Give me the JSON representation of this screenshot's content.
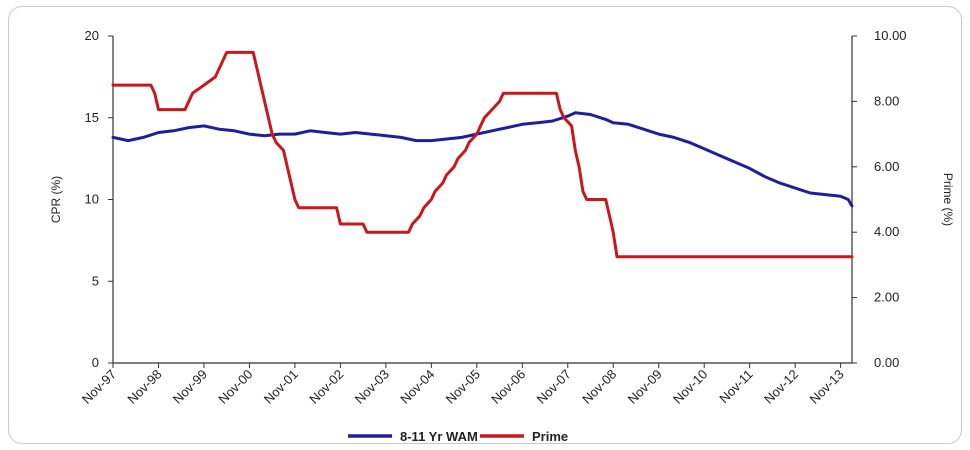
{
  "chart_data": {
    "type": "line",
    "title": "",
    "xlabel": "",
    "ylabel_left": "CPR (%)",
    "ylabel_right": "Prime (%)",
    "x_start": "1997-11",
    "x_end": "2014-02",
    "x_tick_labels": [
      "Nov-97",
      "Nov-98",
      "Nov-99",
      "Nov-00",
      "Nov-01",
      "Nov-02",
      "Nov-03",
      "Nov-04",
      "Nov-05",
      "Nov-06",
      "Nov-07",
      "Nov-08",
      "Nov-09",
      "Nov-10",
      "Nov-11",
      "Nov-12",
      "Nov-13"
    ],
    "y_left": {
      "min": 0,
      "max": 20,
      "ticks": [
        "0",
        "5",
        "10",
        "15",
        "20"
      ]
    },
    "y_right": {
      "min": 0,
      "max": 10,
      "ticks": [
        "0.00",
        "2.00",
        "4.00",
        "6.00",
        "8.00",
        "10.00"
      ]
    },
    "grid": false,
    "legend_position": "bottom",
    "series": [
      {
        "name": "8-11 Yr WAM",
        "axis": "left",
        "color": "#1f1f9c",
        "points": [
          [
            "1997-11",
            13.8
          ],
          [
            "1998-03",
            13.6
          ],
          [
            "1998-07",
            13.8
          ],
          [
            "1998-11",
            14.1
          ],
          [
            "1999-03",
            14.2
          ],
          [
            "1999-07",
            14.4
          ],
          [
            "1999-11",
            14.5
          ],
          [
            "2000-03",
            14.3
          ],
          [
            "2000-07",
            14.2
          ],
          [
            "2000-11",
            14.0
          ],
          [
            "2001-03",
            13.9
          ],
          [
            "2001-07",
            14.0
          ],
          [
            "2001-11",
            14.0
          ],
          [
            "2002-03",
            14.2
          ],
          [
            "2002-07",
            14.1
          ],
          [
            "2002-11",
            14.0
          ],
          [
            "2003-03",
            14.1
          ],
          [
            "2003-07",
            14.0
          ],
          [
            "2003-11",
            13.9
          ],
          [
            "2004-03",
            13.8
          ],
          [
            "2004-07",
            13.6
          ],
          [
            "2004-11",
            13.6
          ],
          [
            "2005-03",
            13.7
          ],
          [
            "2005-07",
            13.8
          ],
          [
            "2005-11",
            14.0
          ],
          [
            "2006-03",
            14.2
          ],
          [
            "2006-07",
            14.4
          ],
          [
            "2006-11",
            14.6
          ],
          [
            "2007-03",
            14.7
          ],
          [
            "2007-07",
            14.8
          ],
          [
            "2007-11",
            15.1
          ],
          [
            "2008-01",
            15.3
          ],
          [
            "2008-05",
            15.2
          ],
          [
            "2008-09",
            14.9
          ],
          [
            "2008-11",
            14.7
          ],
          [
            "2009-03",
            14.6
          ],
          [
            "2009-07",
            14.3
          ],
          [
            "2009-11",
            14.0
          ],
          [
            "2010-03",
            13.8
          ],
          [
            "2010-07",
            13.5
          ],
          [
            "2010-11",
            13.1
          ],
          [
            "2011-03",
            12.7
          ],
          [
            "2011-07",
            12.3
          ],
          [
            "2011-11",
            11.9
          ],
          [
            "2012-03",
            11.4
          ],
          [
            "2012-07",
            11.0
          ],
          [
            "2012-11",
            10.7
          ],
          [
            "2013-03",
            10.4
          ],
          [
            "2013-07",
            10.3
          ],
          [
            "2013-11",
            10.2
          ],
          [
            "2014-01",
            10.0
          ],
          [
            "2014-02",
            9.6
          ]
        ]
      },
      {
        "name": "Prime",
        "axis": "right",
        "color": "#c8181e",
        "points": [
          [
            "1997-11",
            8.5
          ],
          [
            "1998-09",
            8.5
          ],
          [
            "1998-10",
            8.25
          ],
          [
            "1998-11",
            7.75
          ],
          [
            "1999-06",
            7.75
          ],
          [
            "1999-07",
            8.0
          ],
          [
            "1999-08",
            8.25
          ],
          [
            "1999-11",
            8.5
          ],
          [
            "2000-02",
            8.75
          ],
          [
            "2000-03",
            9.0
          ],
          [
            "2000-05",
            9.5
          ],
          [
            "2000-12",
            9.5
          ],
          [
            "2001-01",
            9.0
          ],
          [
            "2001-02",
            8.5
          ],
          [
            "2001-03",
            8.0
          ],
          [
            "2001-04",
            7.5
          ],
          [
            "2001-05",
            7.0
          ],
          [
            "2001-06",
            6.75
          ],
          [
            "2001-08",
            6.5
          ],
          [
            "2001-09",
            6.0
          ],
          [
            "2001-10",
            5.5
          ],
          [
            "2001-11",
            5.0
          ],
          [
            "2001-12",
            4.75
          ],
          [
            "2002-10",
            4.75
          ],
          [
            "2002-11",
            4.25
          ],
          [
            "2003-05",
            4.25
          ],
          [
            "2003-06",
            4.0
          ],
          [
            "2004-05",
            4.0
          ],
          [
            "2004-06",
            4.25
          ],
          [
            "2004-08",
            4.5
          ],
          [
            "2004-09",
            4.75
          ],
          [
            "2004-11",
            5.0
          ],
          [
            "2004-12",
            5.25
          ],
          [
            "2005-02",
            5.5
          ],
          [
            "2005-03",
            5.75
          ],
          [
            "2005-05",
            6.0
          ],
          [
            "2005-06",
            6.25
          ],
          [
            "2005-08",
            6.5
          ],
          [
            "2005-09",
            6.75
          ],
          [
            "2005-11",
            7.0
          ],
          [
            "2005-12",
            7.25
          ],
          [
            "2006-01",
            7.5
          ],
          [
            "2006-03",
            7.75
          ],
          [
            "2006-05",
            8.0
          ],
          [
            "2006-06",
            8.25
          ],
          [
            "2007-08",
            8.25
          ],
          [
            "2007-09",
            7.75
          ],
          [
            "2007-10",
            7.5
          ],
          [
            "2007-12",
            7.25
          ],
          [
            "2008-01",
            6.5
          ],
          [
            "2008-02",
            6.0
          ],
          [
            "2008-03",
            5.25
          ],
          [
            "2008-04",
            5.0
          ],
          [
            "2008-09",
            5.0
          ],
          [
            "2008-10",
            4.5
          ],
          [
            "2008-11",
            4.0
          ],
          [
            "2008-12",
            3.25
          ],
          [
            "2014-02",
            3.25
          ]
        ]
      }
    ]
  }
}
